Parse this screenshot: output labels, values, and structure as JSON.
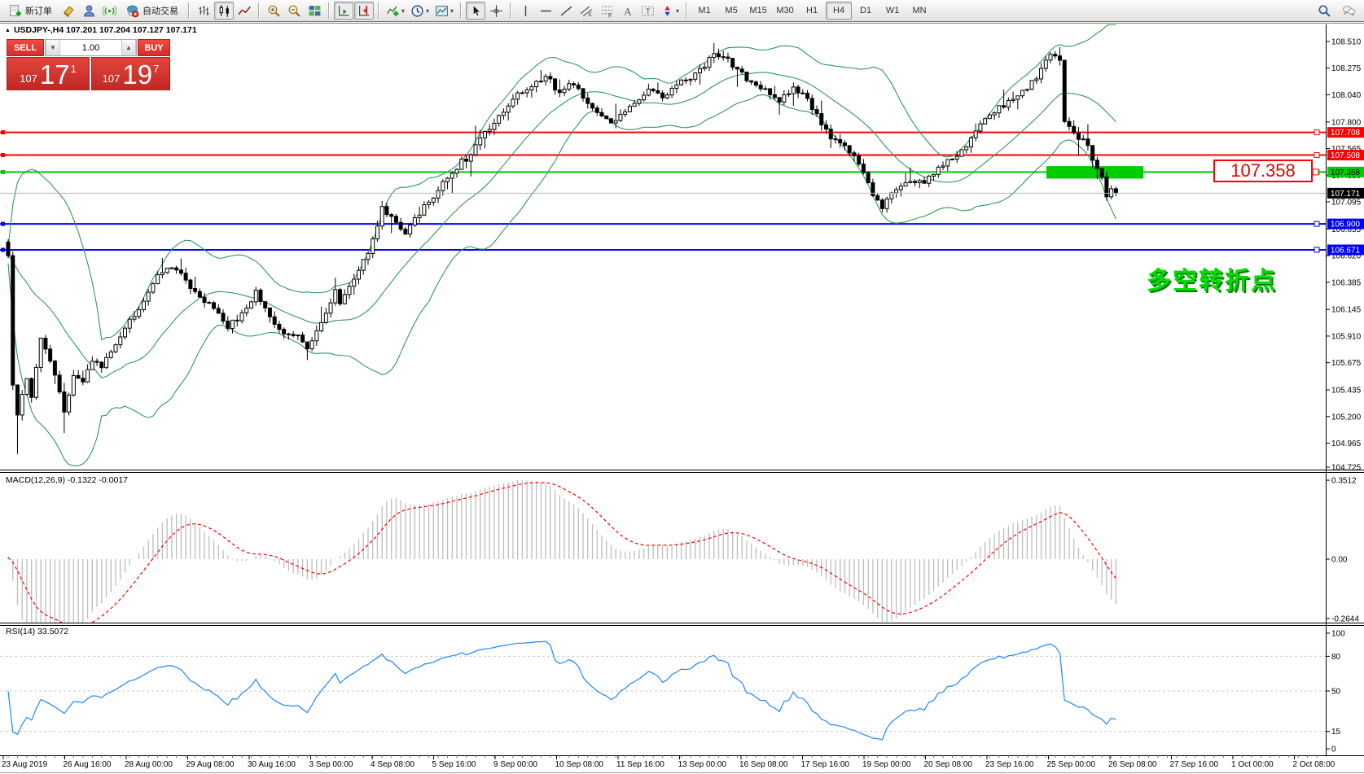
{
  "toolbar": {
    "new_order_label": "新订单",
    "autotrading_label": "自动交易",
    "timeframes": [
      "M1",
      "M5",
      "M15",
      "M30",
      "H1",
      "H4",
      "D1",
      "W1",
      "MN"
    ],
    "active_timeframe": "H4",
    "icons": [
      "new-order-icon",
      "eraser-icon",
      "profile-icon",
      "signals-icon",
      "autotrading-icon",
      "bar-chart-icon",
      "candlestick-icon",
      "line-chart-icon",
      "zoom-in-icon",
      "zoom-out-icon",
      "tile-windows-icon",
      "auto-scroll-icon",
      "chart-shift-icon",
      "indicators-icon",
      "periods-icon",
      "templates-icon",
      "cursor-icon",
      "crosshair-icon",
      "vertical-line-icon",
      "horizontal-line-icon",
      "trendline-icon",
      "channel-icon",
      "fibonacci-icon",
      "text-icon",
      "text-label-icon",
      "arrows-icon",
      "search-icon",
      "chat-icon"
    ]
  },
  "chart": {
    "collapse_marker": "▲",
    "title": "USDJPY-,H4  107.201 107.204 107.127 107.171",
    "symbol": "USDJPY-",
    "period": "H4"
  },
  "trade_panel": {
    "sell_label": "SELL",
    "buy_label": "BUY",
    "volume": "1.00",
    "sell_price": {
      "small": "107",
      "big": "17",
      "sup": "1"
    },
    "buy_price": {
      "small": "107",
      "big": "19",
      "sup": "7"
    }
  },
  "macd_label": "MACD(12,26,9) -0.1322 -0.0017",
  "rsi_label": "RSI(14) 33.5072",
  "price_tag": {
    "text": "107.358"
  },
  "annotation": {
    "text": "多空转折点",
    "color": "#00de00"
  },
  "chart_data": {
    "type": "candlestick",
    "symbol": "USDJPY",
    "timeframe": "H4",
    "bars_visible": 238,
    "price_range": [
      104.725,
      108.51
    ],
    "price_axis_ticks": [
      "108.510",
      "108.275",
      "108.040",
      "107.800",
      "107.565",
      "107.330",
      "107.095",
      "106.855",
      "106.620",
      "106.385",
      "106.145",
      "105.910",
      "105.675",
      "105.435",
      "105.200",
      "104.965",
      "104.725"
    ],
    "levels": [
      {
        "label": "107.708",
        "value": 107.708,
        "color": "#ff0000",
        "text_color": "#ffffff"
      },
      {
        "label": "107.508",
        "value": 107.508,
        "color": "#ff0000",
        "text_color": "#ffffff"
      },
      {
        "label": "107.358",
        "value": 107.358,
        "color": "#00cc00",
        "text_color": "#000000"
      },
      {
        "label": "106.900",
        "value": 106.9,
        "color": "#0000ff",
        "text_color": "#ffffff"
      },
      {
        "label": "106.671",
        "value": 106.671,
        "color": "#0000ff",
        "text_color": "#ffffff"
      }
    ],
    "current_price": {
      "label": "107.171",
      "value": 107.171,
      "badge_color": "#000000",
      "text_color": "#ffffff",
      "line_color": "#b4b4b4"
    },
    "green_zone": {
      "price_top": 107.41,
      "price_bottom": 107.3,
      "color": "#00cd00"
    },
    "bollinger": {
      "period": 20,
      "deviation": 2,
      "color": "#2e9a5e"
    },
    "macd": {
      "fast": 12,
      "slow": 26,
      "signal": 9,
      "value": -0.1322,
      "signal_value": -0.0017,
      "scale_max": "0.3512",
      "scale_zero": "0.00",
      "scale_min": "-0.2644",
      "histogram_color": "#bdbdbd",
      "signal_color": "#ff0000"
    },
    "rsi": {
      "period": 14,
      "value": 33.5072,
      "color": "#1e86ff",
      "scale": [
        "100",
        "80",
        "50",
        "15",
        "0"
      ],
      "scale_values": [
        100,
        80,
        50,
        15,
        0
      ],
      "level_lines": [
        80,
        50,
        15
      ]
    },
    "close_waypoints": [
      [
        0,
        106.62
      ],
      [
        1,
        105.5
      ],
      [
        2,
        105.2
      ],
      [
        4,
        105.55
      ],
      [
        5,
        105.35
      ],
      [
        7,
        105.9
      ],
      [
        9,
        105.55
      ],
      [
        11,
        105.25
      ],
      [
        13,
        105.55
      ],
      [
        15,
        105.5
      ],
      [
        17,
        105.7
      ],
      [
        19,
        105.65
      ],
      [
        22,
        105.85
      ],
      [
        25,
        106.1
      ],
      [
        27,
        106.2
      ],
      [
        30,
        106.45
      ],
      [
        32,
        106.52
      ],
      [
        35,
        106.45
      ],
      [
        38,
        106.3
      ],
      [
        41,
        106.15
      ],
      [
        44,
        106.0
      ],
      [
        47,
        106.1
      ],
      [
        50,
        106.3
      ],
      [
        52,
        106.15
      ],
      [
        55,
        105.95
      ],
      [
        58,
        105.9
      ],
      [
        60,
        105.8
      ],
      [
        63,
        106.05
      ],
      [
        66,
        106.3
      ],
      [
        67,
        106.22
      ],
      [
        70,
        106.4
      ],
      [
        73,
        106.75
      ],
      [
        75,
        107.05
      ],
      [
        78,
        106.9
      ],
      [
        80,
        106.8
      ],
      [
        83,
        107.0
      ],
      [
        86,
        107.15
      ],
      [
        88,
        107.3
      ],
      [
        91,
        107.45
      ],
      [
        93,
        107.5
      ],
      [
        95,
        107.65
      ],
      [
        98,
        107.8
      ],
      [
        100,
        107.9
      ],
      [
        103,
        108.05
      ],
      [
        106,
        108.15
      ],
      [
        108,
        108.22
      ],
      [
        111,
        108.05
      ],
      [
        114,
        108.15
      ],
      [
        116,
        108.0
      ],
      [
        119,
        107.88
      ],
      [
        121,
        107.8
      ],
      [
        124,
        107.9
      ],
      [
        127,
        108.0
      ],
      [
        129,
        108.1
      ],
      [
        132,
        108.0
      ],
      [
        134,
        108.1
      ],
      [
        137,
        108.2
      ],
      [
        140,
        108.3
      ],
      [
        142,
        108.42
      ],
      [
        145,
        108.35
      ],
      [
        148,
        108.22
      ],
      [
        150,
        108.15
      ],
      [
        153,
        108.05
      ],
      [
        155,
        108.0
      ],
      [
        158,
        108.1
      ],
      [
        161,
        108.0
      ],
      [
        163,
        107.85
      ],
      [
        166,
        107.65
      ],
      [
        169,
        107.55
      ],
      [
        171,
        107.45
      ],
      [
        174,
        107.15
      ],
      [
        176,
        107.05
      ],
      [
        179,
        107.2
      ],
      [
        182,
        107.3
      ],
      [
        184,
        107.25
      ],
      [
        187,
        107.4
      ],
      [
        189,
        107.45
      ],
      [
        192,
        107.55
      ],
      [
        195,
        107.7
      ],
      [
        197,
        107.85
      ],
      [
        200,
        107.95
      ],
      [
        202,
        108.0
      ],
      [
        205,
        108.1
      ],
      [
        208,
        108.25
      ],
      [
        210,
        108.4
      ],
      [
        212,
        108.35
      ],
      [
        213,
        107.8
      ],
      [
        215,
        107.7
      ],
      [
        217,
        107.6
      ],
      [
        218,
        107.45
      ],
      [
        220,
        107.3
      ],
      [
        221,
        107.15
      ],
      [
        222,
        107.2
      ],
      [
        223,
        107.171
      ]
    ],
    "time_axis": [
      "23 Aug 2019",
      "26 Aug 16:00",
      "28 Aug 00:00",
      "29 Aug 08:00",
      "30 Aug 16:00",
      "3 Sep 00:00",
      "4 Sep 08:00",
      "5 Sep 16:00",
      "9 Sep 00:00",
      "10 Sep 08:00",
      "11 Sep 16:00",
      "13 Sep 00:00",
      "16 Sep 08:00",
      "17 Sep 16:00",
      "19 Sep 00:00",
      "20 Sep 08:00",
      "23 Sep 16:00",
      "25 Sep 00:00",
      "26 Sep 08:00",
      "27 Sep 16:00",
      "1 Oct 00:00",
      "2 Oct 08:00"
    ]
  }
}
